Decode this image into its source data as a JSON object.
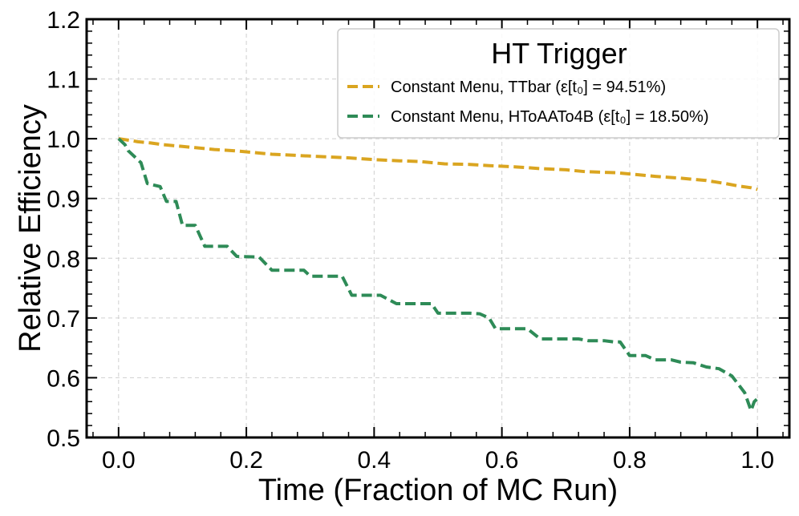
{
  "chart_data": {
    "type": "line",
    "title": "",
    "xlabel": "Time (Fraction of MC Run)",
    "ylabel": "Relative Efficiency",
    "xlim": [
      -0.05,
      1.05
    ],
    "ylim": [
      0.5,
      1.2
    ],
    "xticks": [
      0.0,
      0.2,
      0.4,
      0.6,
      0.8,
      1.0
    ],
    "xtick_labels": [
      "0.0",
      "0.2",
      "0.4",
      "0.6",
      "0.8",
      "1.0"
    ],
    "yticks": [
      0.5,
      0.6,
      0.7,
      0.8,
      0.9,
      1.0,
      1.1,
      1.2
    ],
    "ytick_labels": [
      "0.5",
      "0.6",
      "0.7",
      "0.8",
      "0.9",
      "1.0",
      "1.1",
      "1.2"
    ],
    "grid": true,
    "legend": {
      "title": "HT Trigger",
      "placement": "top-right",
      "entries": [
        "Constant Menu, TTbar (ε[t₀] = 94.51%)",
        "Constant Menu, HToAATo4B (ε[t₀] = 18.50%)"
      ]
    },
    "series": [
      {
        "name": "Constant Menu, TTbar (ε[t₀] = 94.51%)",
        "color": "#DAA520",
        "style": "dashed",
        "x": [
          0.0,
          0.02,
          0.03,
          0.05,
          0.07,
          0.1,
          0.12,
          0.15,
          0.18,
          0.2,
          0.24,
          0.3,
          0.36,
          0.4,
          0.44,
          0.47,
          0.51,
          0.55,
          0.58,
          0.62,
          0.66,
          0.7,
          0.73,
          0.78,
          0.8,
          0.84,
          0.88,
          0.92,
          0.95,
          0.97,
          0.99,
          1.0
        ],
        "y": [
          1.0,
          0.997,
          0.995,
          0.993,
          0.99,
          0.987,
          0.985,
          0.982,
          0.98,
          0.978,
          0.974,
          0.971,
          0.968,
          0.965,
          0.963,
          0.962,
          0.958,
          0.957,
          0.955,
          0.953,
          0.95,
          0.948,
          0.945,
          0.943,
          0.941,
          0.937,
          0.934,
          0.93,
          0.925,
          0.921,
          0.918,
          0.915
        ]
      },
      {
        "name": "Constant Menu, HToAATo4B (ε[t₀] = 18.50%)",
        "color": "#2E8B57",
        "style": "dashed",
        "x": [
          0.0,
          0.01,
          0.015,
          0.025,
          0.035,
          0.045,
          0.065,
          0.075,
          0.09,
          0.1,
          0.12,
          0.135,
          0.17,
          0.185,
          0.22,
          0.24,
          0.29,
          0.3,
          0.35,
          0.365,
          0.41,
          0.435,
          0.49,
          0.5,
          0.55,
          0.565,
          0.58,
          0.59,
          0.64,
          0.66,
          0.72,
          0.735,
          0.76,
          0.775,
          0.785,
          0.8,
          0.825,
          0.84,
          0.865,
          0.88,
          0.9,
          0.92,
          0.94,
          0.96,
          0.98,
          0.99,
          0.995,
          1.0
        ],
        "y": [
          1.0,
          0.99,
          0.98,
          0.97,
          0.96,
          0.925,
          0.92,
          0.895,
          0.895,
          0.855,
          0.855,
          0.82,
          0.82,
          0.803,
          0.802,
          0.78,
          0.78,
          0.77,
          0.77,
          0.738,
          0.738,
          0.724,
          0.724,
          0.708,
          0.708,
          0.707,
          0.7,
          0.682,
          0.682,
          0.665,
          0.665,
          0.662,
          0.662,
          0.66,
          0.66,
          0.637,
          0.637,
          0.63,
          0.63,
          0.626,
          0.625,
          0.618,
          0.615,
          0.603,
          0.575,
          0.545,
          0.56,
          0.565
        ]
      }
    ]
  }
}
